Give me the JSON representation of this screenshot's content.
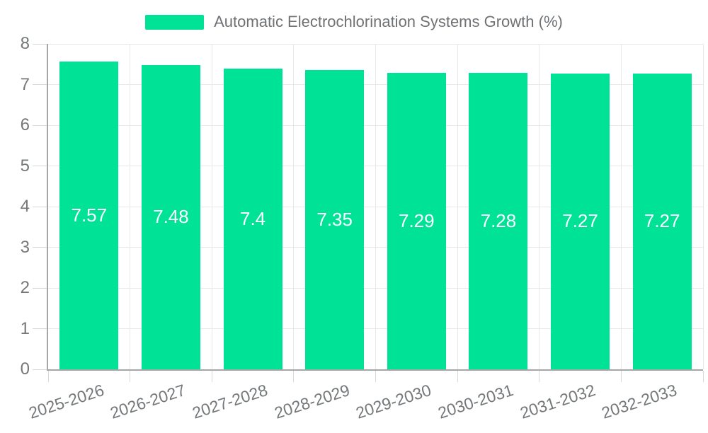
{
  "chart_data": {
    "type": "bar",
    "title": "Automatic Electrochlorination Systems Growth (%)",
    "categories": [
      "2025-2026",
      "2026-2027",
      "2027-2028",
      "2028-2029",
      "2029-2030",
      "2030-2031",
      "2031-2032",
      "2032-2033"
    ],
    "values": [
      7.57,
      7.48,
      7.4,
      7.35,
      7.29,
      7.28,
      7.27,
      7.27
    ],
    "value_labels": [
      "7.57",
      "7.48",
      "7.4",
      "7.35",
      "7.29",
      "7.28",
      "7.27",
      "7.27"
    ],
    "ylim": [
      0,
      8
    ],
    "yticks": [
      0,
      1,
      2,
      3,
      4,
      5,
      6,
      7,
      8
    ],
    "xlabel": "",
    "ylabel": "",
    "legend": {
      "position": "top",
      "label": "Automatic Electrochlorination Systems Growth (%)"
    },
    "grid": true,
    "x_label_rotation_deg": -18,
    "colors": {
      "bar": "#00E396",
      "bar_label": "#FFFFFF",
      "axis_text": "#75787A",
      "legend_text": "#6F7275",
      "gridline": "#E8E8E8",
      "axis_line": "#A6A6A6",
      "tick": "#D8D8D8"
    }
  }
}
